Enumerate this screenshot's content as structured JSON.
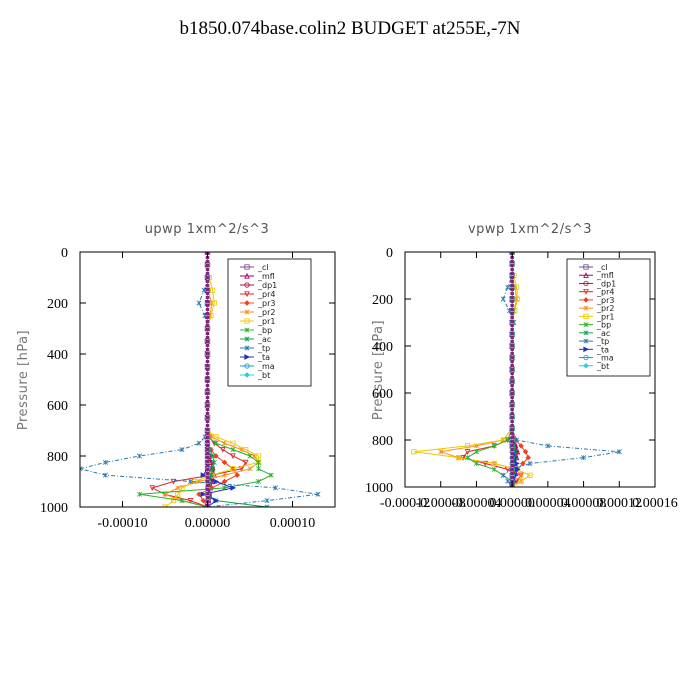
{
  "title": "b1850.074base.colin2  BUDGET at255E,-7N",
  "chart_data": [
    {
      "type": "line",
      "title": "upwp   1xm^2/s^3",
      "ylabel": "Pressure [hPa]",
      "xlabel": "",
      "xlim": [
        -0.00015,
        0.00015
      ],
      "ylim": [
        1000,
        0
      ],
      "xticks": [
        -0.0001,
        0,
        0.0001
      ],
      "xtick_labels": [
        "-0.00010",
        "0.00000",
        "0.00010"
      ],
      "yticks": [
        0,
        200,
        400,
        600,
        800,
        1000
      ],
      "ytick_labels": [
        "0",
        "200",
        "400",
        "600",
        "800",
        "1000"
      ],
      "legend": "top-right",
      "pressure": [
        0,
        50,
        100,
        150,
        200,
        250,
        300,
        350,
        400,
        450,
        500,
        550,
        600,
        650,
        700,
        725,
        750,
        775,
        800,
        825,
        850,
        875,
        900,
        925,
        950,
        975,
        1000
      ],
      "series": [
        {
          "name": "_cl",
          "color": "#7a4a9a",
          "values": [
            0,
            0,
            0,
            0,
            0,
            0,
            0,
            0,
            0,
            0,
            0,
            0,
            0,
            0,
            0,
            0,
            0,
            0,
            1e-06,
            2e-06,
            2e-06,
            3e-06,
            2e-06,
            1e-06,
            2e-06,
            1e-06,
            0
          ]
        },
        {
          "name": "_mfl",
          "color": "#a0006a",
          "values": [
            0,
            0,
            0,
            0,
            0,
            0,
            0,
            0,
            0,
            0,
            0,
            0,
            0,
            0,
            0,
            0,
            0,
            1e-06,
            2e-06,
            4e-06,
            6e-06,
            8e-06,
            6e-06,
            3e-06,
            2e-06,
            1e-06,
            0
          ]
        },
        {
          "name": "_dp1",
          "color": "#b01040",
          "values": [
            0,
            0,
            0,
            0,
            0,
            0,
            0,
            0,
            0,
            0,
            0,
            0,
            0,
            0,
            0,
            0,
            0,
            0,
            2e-06,
            4e-06,
            6e-06,
            5e-06,
            3e-06,
            2e-06,
            1e-06,
            0,
            0
          ]
        },
        {
          "name": "_pr4",
          "color": "#e0202a",
          "values": [
            0,
            0,
            0,
            0,
            0,
            0,
            0,
            0,
            0,
            0,
            0,
            0,
            0,
            0,
            0,
            2e-06,
            8e-06,
            1.8e-05,
            3e-05,
            4.5e-05,
            4e-05,
            5e-06,
            -4e-05,
            -6.5e-05,
            -5e-05,
            -2e-05,
            0
          ]
        },
        {
          "name": "_pr3",
          "color": "#f04020",
          "values": [
            0,
            0,
            0,
            0,
            0,
            0,
            0,
            0,
            0,
            0,
            0,
            0,
            0,
            0,
            0,
            0,
            0,
            4e-06,
            1e-05,
            2e-05,
            3e-05,
            3.5e-05,
            2e-05,
            5e-06,
            -1e-05,
            -5e-06,
            0
          ]
        },
        {
          "name": "_pr2",
          "color": "#f59020",
          "values": [
            0,
            0,
            0,
            0,
            5e-06,
            3e-06,
            0,
            0,
            0,
            0,
            0,
            0,
            0,
            0,
            0,
            5e-06,
            2e-05,
            4e-05,
            5.5e-05,
            6e-05,
            5e-05,
            2e-05,
            -1e-05,
            -3.5e-05,
            -5e-05,
            -3e-05,
            0
          ]
        },
        {
          "name": "_pr1",
          "color": "#f0c800",
          "values": [
            0,
            0,
            2e-06,
            6e-06,
            8e-06,
            4e-06,
            0,
            0,
            0,
            0,
            0,
            0,
            0,
            0,
            0,
            1e-05,
            3e-05,
            4.5e-05,
            6e-05,
            6e-05,
            3e-05,
            5e-06,
            -1.5e-05,
            -3e-05,
            -3.5e-05,
            -4e-05,
            -5e-05
          ]
        },
        {
          "name": "_bp",
          "color": "#30b030",
          "values": [
            0,
            0,
            0,
            0,
            0,
            0,
            0,
            0,
            0,
            0,
            0,
            0,
            0,
            0,
            0,
            0,
            1e-05,
            3e-05,
            5e-05,
            6e-05,
            6e-05,
            7.5e-05,
            6e-05,
            2e-05,
            -8e-05,
            -3e-05,
            0
          ]
        },
        {
          "name": "_ac",
          "color": "#10a050",
          "values": [
            0,
            0,
            0,
            0,
            0,
            0,
            0,
            0,
            0,
            0,
            0,
            0,
            0,
            0,
            0,
            0,
            0,
            3e-06,
            6e-06,
            8e-06,
            6e-06,
            4e-06,
            2e-06,
            1e-06,
            0,
            1e-05,
            7e-05
          ]
        },
        {
          "name": "_tp",
          "color": "#2a7ab0",
          "values": [
            0,
            0,
            0,
            -4e-06,
            -1e-05,
            -3e-06,
            0,
            0,
            0,
            0,
            0,
            0,
            0,
            0,
            0,
            -3e-06,
            -1e-05,
            -3e-05,
            -8e-05,
            -0.00012,
            -0.00015,
            -0.00012,
            -2e-05,
            8e-05,
            0.00013,
            7e-05,
            0
          ]
        },
        {
          "name": "_ta",
          "color": "#2030c0",
          "values": [
            0,
            0,
            0,
            0,
            0,
            0,
            0,
            0,
            0,
            0,
            0,
            0,
            0,
            0,
            0,
            0,
            0,
            0,
            0,
            0,
            0,
            -5e-06,
            1e-05,
            3e-05,
            -5e-06,
            1e-05,
            0
          ]
        },
        {
          "name": "_ma",
          "color": "#1a9ad0",
          "values": [
            0,
            0,
            0,
            0,
            0,
            0,
            0,
            0,
            0,
            0,
            0,
            0,
            0,
            0,
            0,
            0,
            0,
            0,
            0,
            0,
            0,
            0,
            0,
            0,
            0,
            0,
            0
          ]
        },
        {
          "name": "_bt",
          "color": "#20d0e0",
          "values": [
            0,
            0,
            0,
            0,
            0,
            0,
            0,
            0,
            0,
            0,
            0,
            0,
            0,
            0,
            0,
            0,
            0,
            0,
            0,
            0,
            0,
            0,
            0,
            0,
            0,
            0,
            0
          ]
        }
      ]
    },
    {
      "type": "line",
      "title": "vpwp   1xm^2/s^3",
      "ylabel": "Pressure [hPa]",
      "xlabel": "",
      "xlim": [
        -0.00012,
        0.00016
      ],
      "ylim": [
        1000,
        0
      ],
      "xticks": [
        -0.00012,
        -8e-05,
        -4e-05,
        0,
        4e-05,
        8e-05,
        0.00012,
        0.00016
      ],
      "xtick_labels": [
        "-0.00012",
        "-0.00008",
        "-0.00004",
        "0.00000",
        "0.00004",
        "0.00008",
        "0.00012",
        "0.00016"
      ],
      "yticks": [
        0,
        200,
        400,
        600,
        800,
        1000
      ],
      "ytick_labels": [
        "0",
        "200",
        "400",
        "600",
        "800",
        "1000"
      ],
      "legend": "top-right",
      "pressure": [
        0,
        50,
        100,
        150,
        200,
        250,
        300,
        350,
        400,
        450,
        500,
        550,
        600,
        650,
        700,
        750,
        800,
        825,
        850,
        875,
        900,
        925,
        950,
        975,
        1000
      ],
      "series": [
        {
          "name": "_cl",
          "color": "#7a4a9a",
          "values": [
            0,
            0,
            0,
            0,
            0,
            0,
            0,
            0,
            0,
            0,
            0,
            0,
            0,
            0,
            0,
            0,
            1e-06,
            2e-06,
            3e-06,
            2e-06,
            1e-06,
            1e-06,
            0,
            0,
            0
          ]
        },
        {
          "name": "_mfl",
          "color": "#a0006a",
          "values": [
            0,
            0,
            0,
            0,
            0,
            0,
            0,
            0,
            0,
            0,
            0,
            0,
            0,
            0,
            0,
            0,
            2e-06,
            4e-06,
            6e-06,
            5e-06,
            3e-06,
            2e-06,
            1e-06,
            0,
            0
          ]
        },
        {
          "name": "_dp1",
          "color": "#b01040",
          "values": [
            0,
            0,
            0,
            0,
            0,
            0,
            0,
            0,
            0,
            0,
            0,
            0,
            0,
            0,
            0,
            0,
            2e-06,
            3e-06,
            5e-06,
            4e-06,
            2e-06,
            1e-06,
            0,
            0,
            0
          ]
        },
        {
          "name": "_pr4",
          "color": "#e0202a",
          "values": [
            0,
            0,
            0,
            0,
            0,
            0,
            0,
            0,
            0,
            0,
            0,
            0,
            0,
            0,
            0,
            0,
            -5e-06,
            -2e-05,
            -5e-05,
            -5.5e-05,
            -3e-05,
            -5e-06,
            1e-05,
            5e-06,
            0
          ]
        },
        {
          "name": "_pr3",
          "color": "#f04020",
          "values": [
            0,
            0,
            0,
            0,
            0,
            0,
            0,
            0,
            0,
            0,
            0,
            0,
            0,
            0,
            0,
            0,
            4e-06,
            1e-05,
            1.5e-05,
            1.8e-05,
            1.2e-05,
            6e-06,
            2e-06,
            0,
            0
          ]
        },
        {
          "name": "_pr2",
          "color": "#f59020",
          "values": [
            0,
            0,
            0,
            3e-06,
            5e-06,
            2e-06,
            0,
            0,
            0,
            0,
            0,
            0,
            0,
            0,
            0,
            0,
            -1e-05,
            -4e-05,
            -8e-05,
            -6e-05,
            -2e-05,
            5e-06,
            1e-05,
            1e-05,
            0
          ]
        },
        {
          "name": "_pr1",
          "color": "#f0c800",
          "values": [
            0,
            0,
            2e-06,
            5e-06,
            6e-06,
            3e-06,
            0,
            0,
            0,
            0,
            0,
            0,
            0,
            0,
            0,
            0,
            -1e-05,
            -5e-05,
            -0.00011,
            -6e-05,
            -2e-05,
            5e-06,
            2e-05,
            1e-05,
            0
          ]
        },
        {
          "name": "_bp",
          "color": "#30b030",
          "values": [
            0,
            0,
            0,
            0,
            0,
            0,
            0,
            0,
            0,
            0,
            0,
            0,
            0,
            0,
            0,
            0,
            -5e-06,
            -2e-05,
            -4e-05,
            -5e-05,
            -4e-05,
            -2e-05,
            -1e-05,
            0,
            0
          ]
        },
        {
          "name": "_ac",
          "color": "#10a050",
          "values": [
            0,
            0,
            0,
            0,
            0,
            0,
            0,
            0,
            0,
            0,
            0,
            0,
            0,
            0,
            0,
            0,
            0,
            2e-06,
            4e-06,
            3e-06,
            2e-06,
            1e-06,
            0,
            0,
            0
          ]
        },
        {
          "name": "_tp",
          "color": "#2a7ab0",
          "values": [
            0,
            0,
            0,
            -5e-06,
            -1e-05,
            -3e-06,
            2e-06,
            0,
            0,
            0,
            0,
            0,
            0,
            0,
            0,
            0,
            5e-06,
            4e-05,
            0.00012,
            8e-05,
            2e-05,
            0,
            -1e-05,
            -5e-06,
            0
          ]
        },
        {
          "name": "_ta",
          "color": "#2030c0",
          "values": [
            0,
            0,
            0,
            0,
            0,
            0,
            0,
            0,
            0,
            0,
            0,
            0,
            0,
            0,
            0,
            0,
            0,
            0,
            2e-06,
            3e-06,
            5e-06,
            6e-06,
            4e-06,
            2e-06,
            0
          ]
        },
        {
          "name": "_ma",
          "color": "#1a9ad0",
          "values": [
            0,
            0,
            0,
            0,
            0,
            0,
            0,
            0,
            0,
            0,
            0,
            0,
            0,
            0,
            0,
            0,
            0,
            0,
            0,
            0,
            0,
            0,
            0,
            0,
            0
          ]
        },
        {
          "name": "_bt",
          "color": "#20d0e0",
          "values": [
            0,
            0,
            0,
            0,
            0,
            0,
            0,
            0,
            0,
            0,
            0,
            0,
            0,
            0,
            0,
            0,
            0,
            0,
            0,
            0,
            0,
            0,
            0,
            0,
            0
          ]
        }
      ]
    }
  ]
}
